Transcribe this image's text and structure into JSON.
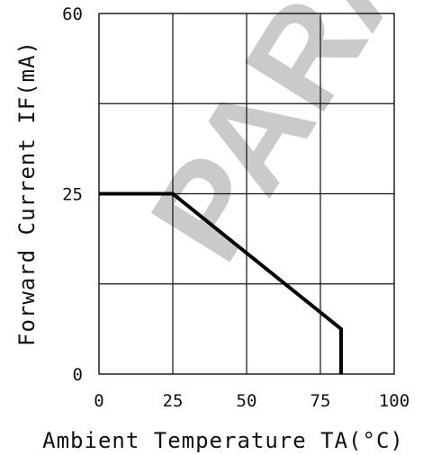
{
  "chart_data": {
    "type": "line",
    "title": "",
    "xlabel": "Ambient Temperature TA(°C)",
    "ylabel": "Forward Current IF(mA)",
    "xlim": [
      0,
      100
    ],
    "ylim": [
      0,
      60
    ],
    "x_ticks": [
      "0",
      "25",
      "50",
      "75",
      "100"
    ],
    "y_ticks": [
      "0",
      "25",
      "60"
    ],
    "x_tick_values": [
      0,
      25,
      50,
      75,
      100
    ],
    "y_tick_values": [
      0,
      25,
      60
    ],
    "grid": true,
    "series": [
      {
        "x": [
          0,
          25,
          82,
          82
        ],
        "y": [
          30,
          30,
          7.5,
          0
        ]
      }
    ]
  },
  "colors": {
    "line": "#000000",
    "grid": "#111111",
    "watermark": "#bdbdbd"
  },
  "watermark_text": "PARA"
}
